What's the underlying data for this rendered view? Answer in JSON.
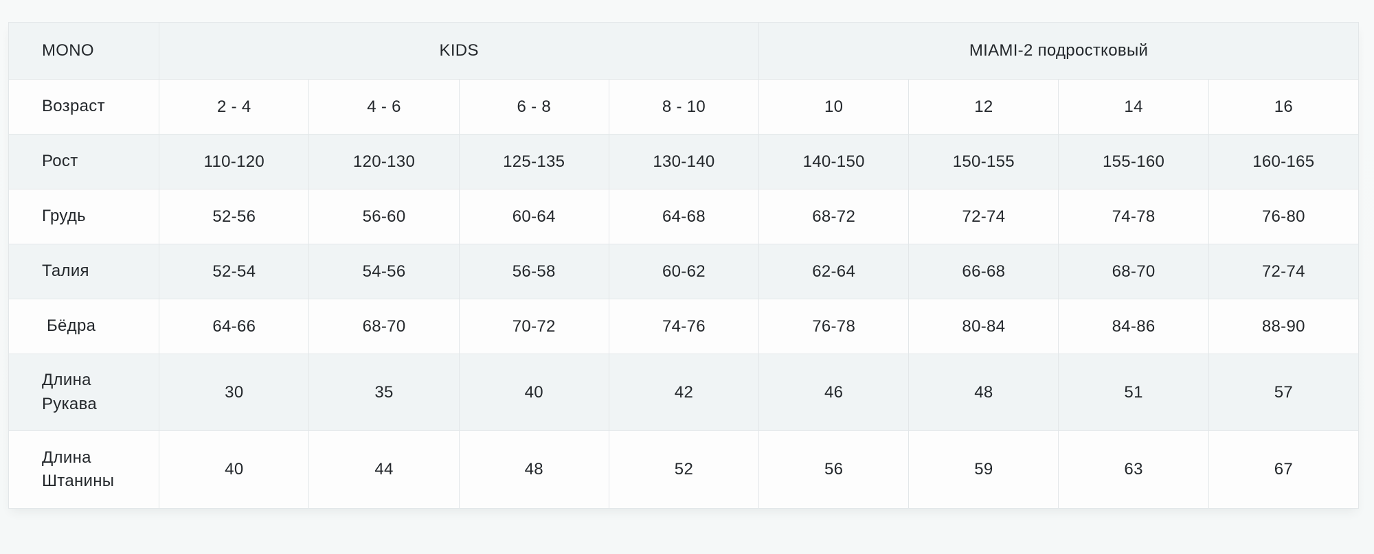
{
  "table": {
    "brand": "MONO",
    "groups": [
      {
        "label": "KIDS",
        "span": 4
      },
      {
        "label": "MIAMI-2 подростковый",
        "span": 4
      }
    ],
    "rows": [
      {
        "name": "age",
        "label": "Возраст",
        "values": [
          "2 - 4",
          "4 - 6",
          "6 - 8",
          "8 - 10",
          "10",
          "12",
          "14",
          "16"
        ]
      },
      {
        "name": "height",
        "label": "Рост",
        "values": [
          "110-120",
          "120-130",
          "125-135",
          "130-140",
          "140-150",
          "150-155",
          "155-160",
          "160-165"
        ]
      },
      {
        "name": "chest",
        "label": "Грудь",
        "values": [
          "52-56",
          "56-60",
          "60-64",
          "64-68",
          "68-72",
          "72-74",
          "74-78",
          "76-80"
        ]
      },
      {
        "name": "waist",
        "label": "Талия",
        "values": [
          "52-54",
          "54-56",
          "56-58",
          "60-62",
          "62-64",
          "66-68",
          "68-70",
          "72-74"
        ]
      },
      {
        "name": "hips",
        "label": " Бёдра",
        "values": [
          "64-66",
          "68-70",
          "70-72",
          "74-76",
          "76-78",
          "80-84",
          "84-86",
          "88-90"
        ]
      },
      {
        "name": "sleeve-length",
        "label": "Длина\nРукава",
        "values": [
          "30",
          "35",
          "40",
          "42",
          "46",
          "48",
          "51",
          "57"
        ]
      },
      {
        "name": "inseam-length",
        "label": "Длина\nШтанины",
        "values": [
          "40",
          "44",
          "48",
          "52",
          "56",
          "59",
          "63",
          "67"
        ]
      }
    ],
    "colors": {
      "stripe_row": "#f0f4f5",
      "plain_row": "#fdfdfd",
      "border": "#e3e7e9",
      "text": "#24282c",
      "page_background": "#f6f8f8"
    }
  }
}
